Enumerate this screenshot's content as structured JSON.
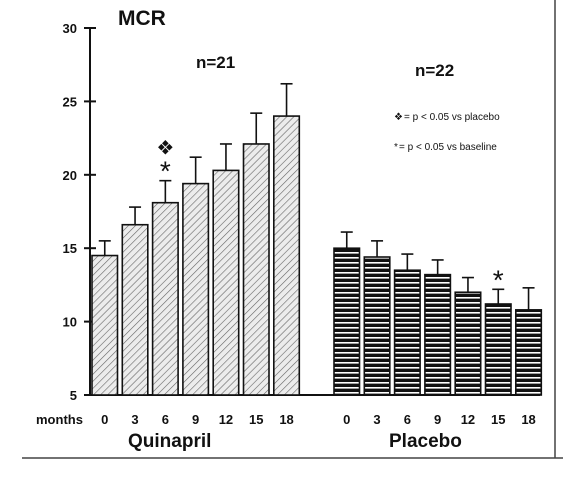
{
  "chart_data": {
    "type": "bar",
    "title": "MCR",
    "x_axis_label": "months",
    "ylim": [
      5,
      30
    ],
    "y_ticks": [
      5,
      10,
      15,
      20,
      25,
      30
    ],
    "grid": false,
    "groups": [
      {
        "name": "Quinapril",
        "n_label": "n=21",
        "categories": [
          "0",
          "3",
          "6",
          "9",
          "12",
          "15",
          "18"
        ],
        "values": [
          14.5,
          16.6,
          18.1,
          19.4,
          20.3,
          22.1,
          24.0
        ],
        "error": [
          1.0,
          1.2,
          1.5,
          1.8,
          1.8,
          2.1,
          2.2
        ],
        "pattern": "diagonal-hatch",
        "color": "#e8e8e8"
      },
      {
        "name": "Placebo",
        "n_label": "n=22",
        "categories": [
          "0",
          "3",
          "6",
          "9",
          "12",
          "15",
          "18"
        ],
        "values": [
          15.0,
          14.4,
          13.5,
          13.2,
          12.0,
          11.2,
          10.8
        ],
        "error": [
          1.1,
          1.1,
          1.1,
          1.0,
          1.0,
          1.0,
          1.5
        ],
        "pattern": "horizontal-stripes",
        "color": "#111111"
      }
    ],
    "annotations": [
      {
        "group": 0,
        "category": "6",
        "symbols": [
          "❖",
          "*"
        ]
      },
      {
        "group": 1,
        "category": "15",
        "symbols": [
          "*"
        ]
      }
    ],
    "legend": [
      {
        "symbol": "❖",
        "text": "= p < 0.05 vs placebo"
      },
      {
        "symbol": "*",
        "text": " = p < 0.05 vs baseline"
      }
    ]
  }
}
